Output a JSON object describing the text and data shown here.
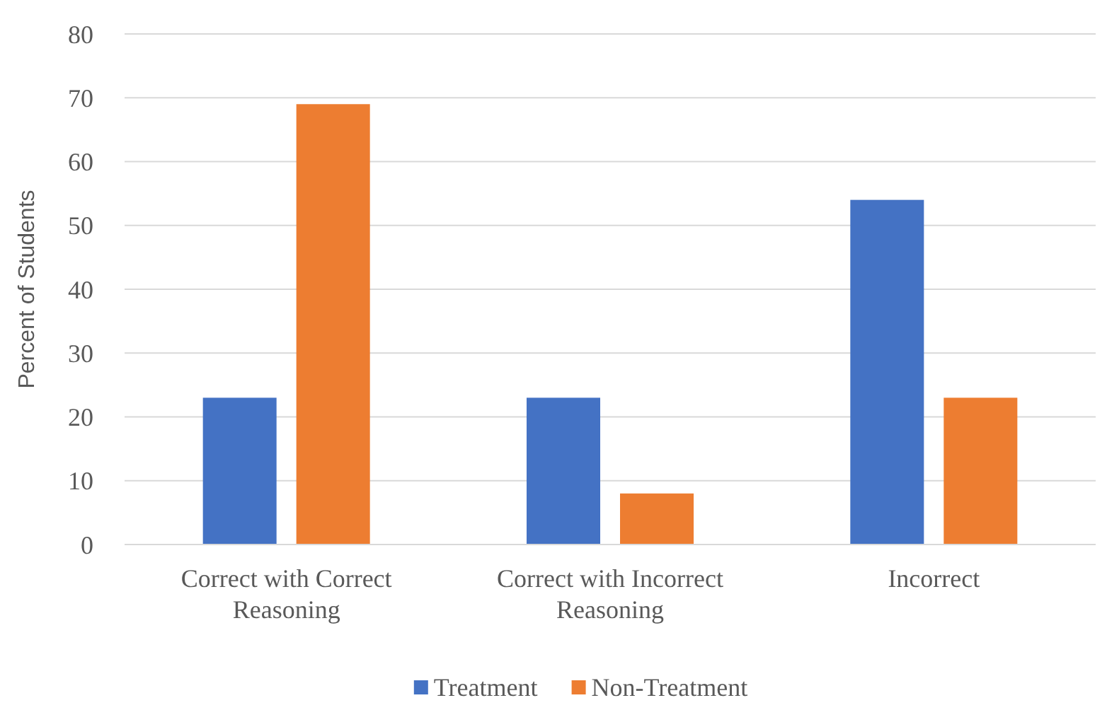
{
  "chart_data": {
    "type": "bar",
    "ylabel": "Percent of Students",
    "categories": [
      "Correct with Correct Reasoning",
      "Correct with Incorrect Reasoning",
      "Incorrect"
    ],
    "series": [
      {
        "name": "Treatment",
        "color": "#4472c4",
        "values": [
          23,
          23,
          54
        ]
      },
      {
        "name": "Non-Treatment",
        "color": "#ed7d31",
        "values": [
          69,
          8,
          23
        ]
      }
    ],
    "ylim": [
      0,
      80
    ],
    "yticks": [
      0,
      10,
      20,
      30,
      40,
      50,
      60,
      70,
      80
    ],
    "grid": "y",
    "legend": "bottom"
  }
}
